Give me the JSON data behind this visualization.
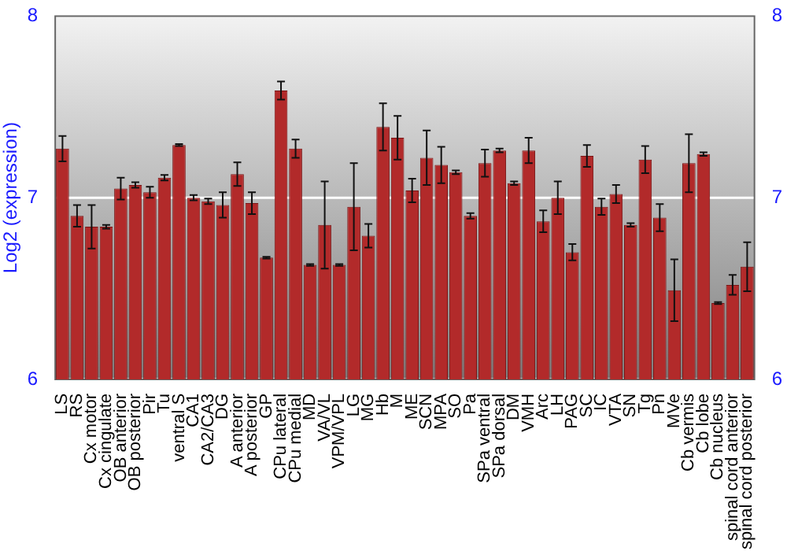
{
  "chart_data": {
    "type": "bar",
    "ylabel": "Log2 (expression)",
    "categories": [
      "LS",
      "RS",
      "Cx motor",
      "Cx cingulate",
      "OB anterior",
      "OB posterior",
      "Pir",
      "Tu",
      "ventral S",
      "CA1",
      "CA2/CA3",
      "DG",
      "A anterior",
      "A posterior",
      "GP",
      "CPu lateral",
      "CPu medial",
      "MD",
      "VA/VL",
      "VPM/VPL",
      "LG",
      "MG",
      "Hb",
      "M",
      "ME",
      "SCN",
      "MPA",
      "SO",
      "Pa",
      "SPa ventral",
      "SPa dorsal",
      "DM",
      "VMH",
      "Arc",
      "LH",
      "PAG",
      "SC",
      "IC",
      "VTA",
      "SN",
      "Tg",
      "Pn",
      "MVe",
      "Cb vermis",
      "Cb lobe",
      "Cb nucleus",
      "spinal cord anterior",
      "spinal cord posterior"
    ],
    "values": [
      7.27,
      6.9,
      6.84,
      6.84,
      7.05,
      7.07,
      7.03,
      7.11,
      7.29,
      7.0,
      6.98,
      6.96,
      7.13,
      6.97,
      6.67,
      7.59,
      7.27,
      6.63,
      6.85,
      6.63,
      6.95,
      6.79,
      7.39,
      7.33,
      7.04,
      7.22,
      7.18,
      7.14,
      6.9,
      7.19,
      7.26,
      7.08,
      7.26,
      6.87,
      7.0,
      6.7,
      7.23,
      6.95,
      7.02,
      6.85,
      7.21,
      6.89,
      6.49,
      7.19,
      7.24,
      6.42,
      6.52,
      6.62
    ],
    "errors": [
      0.07,
      0.06,
      0.12,
      0.01,
      0.06,
      0.015,
      0.03,
      0.015,
      0.005,
      0.015,
      0.015,
      0.07,
      0.065,
      0.06,
      0.005,
      0.05,
      0.05,
      0.005,
      0.24,
      0.005,
      0.24,
      0.065,
      0.13,
      0.12,
      0.065,
      0.15,
      0.1,
      0.01,
      0.015,
      0.075,
      0.01,
      0.01,
      0.07,
      0.06,
      0.09,
      0.045,
      0.06,
      0.045,
      0.05,
      0.01,
      0.075,
      0.075,
      0.17,
      0.16,
      0.01,
      0.005,
      0.055,
      0.135
    ],
    "color": "#b22a2a",
    "ylim": [
      6,
      8
    ],
    "yticks": [
      6,
      7,
      8
    ],
    "y2lim": [
      6,
      8
    ],
    "y2ticks": [
      6,
      7,
      8
    ],
    "grid": "y"
  }
}
